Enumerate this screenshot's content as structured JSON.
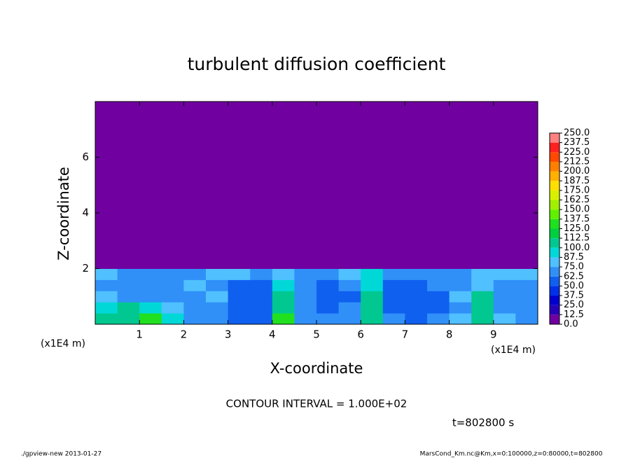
{
  "chart_data": {
    "type": "heatmap",
    "title": "turbulent diffusion coefficient",
    "xlabel": "X-coordinate",
    "ylabel": "Z-coordinate",
    "x_unit": "(x1E4 m)",
    "y_unit": "(x1E4 m)",
    "xlim": [
      0,
      10
    ],
    "ylim": [
      0,
      8
    ],
    "xticks": [
      1,
      2,
      3,
      4,
      5,
      6,
      7,
      8,
      9
    ],
    "yticks": [
      2,
      4,
      6
    ],
    "x": [
      0.25,
      0.75,
      1.25,
      1.75,
      2.25,
      2.75,
      3.25,
      3.75,
      4.25,
      4.75,
      5.25,
      5.75,
      6.25,
      6.75,
      7.25,
      7.75,
      8.25,
      8.75,
      9.25,
      9.75
    ],
    "y": [
      0.2,
      0.6,
      1.0,
      1.4,
      1.8,
      2.2,
      2.6,
      3.0,
      3.4,
      3.8,
      4.2,
      4.6,
      5.0,
      5.4,
      5.8,
      6.2,
      6.6,
      7.0,
      7.4,
      7.8
    ],
    "z": [
      [
        100,
        110,
        125,
        90,
        70,
        65,
        62,
        60,
        130,
        70,
        65,
        70,
        110,
        65,
        60,
        65,
        75,
        110,
        75,
        70
      ],
      [
        95,
        100,
        90,
        75,
        68,
        70,
        62,
        58,
        110,
        65,
        62,
        68,
        100,
        60,
        62,
        60,
        70,
        105,
        70,
        68
      ],
      [
        75,
        70,
        65,
        70,
        72,
        75,
        60,
        55,
        100,
        65,
        60,
        62,
        100,
        62,
        55,
        60,
        75,
        100,
        68,
        70
      ],
      [
        70,
        68,
        65,
        72,
        75,
        70,
        62,
        60,
        90,
        68,
        60,
        65,
        95,
        60,
        62,
        65,
        70,
        80,
        70,
        72
      ],
      [
        75,
        72,
        70,
        68,
        72,
        80,
        75,
        70,
        80,
        72,
        70,
        75,
        90,
        65,
        68,
        72,
        70,
        75,
        80,
        78
      ],
      [
        0,
        0,
        0,
        0,
        0,
        0,
        0,
        0,
        0,
        0,
        0,
        0,
        0,
        0,
        0,
        0,
        0,
        0,
        0,
        0
      ],
      [
        0,
        0,
        0,
        0,
        0,
        0,
        0,
        0,
        0,
        0,
        0,
        0,
        0,
        0,
        0,
        0,
        0,
        0,
        0,
        0
      ],
      [
        0,
        0,
        0,
        0,
        0,
        0,
        0,
        0,
        0,
        0,
        0,
        0,
        0,
        0,
        0,
        0,
        0,
        0,
        0,
        0
      ],
      [
        0,
        0,
        0,
        0,
        0,
        0,
        0,
        0,
        0,
        0,
        0,
        0,
        0,
        0,
        0,
        0,
        0,
        0,
        0,
        0
      ],
      [
        0,
        0,
        0,
        0,
        0,
        0,
        0,
        0,
        0,
        0,
        0,
        0,
        0,
        0,
        0,
        0,
        0,
        0,
        0,
        0
      ],
      [
        0,
        0,
        0,
        0,
        0,
        0,
        0,
        0,
        0,
        0,
        0,
        0,
        0,
        0,
        0,
        0,
        0,
        0,
        0,
        0
      ],
      [
        0,
        0,
        0,
        0,
        0,
        0,
        0,
        0,
        0,
        0,
        0,
        0,
        0,
        0,
        0,
        0,
        0,
        0,
        0,
        0
      ],
      [
        0,
        0,
        0,
        0,
        0,
        0,
        0,
        0,
        0,
        0,
        0,
        0,
        0,
        0,
        0,
        0,
        0,
        0,
        0,
        0
      ],
      [
        0,
        0,
        0,
        0,
        0,
        0,
        0,
        0,
        0,
        0,
        0,
        0,
        0,
        0,
        0,
        0,
        0,
        0,
        0,
        0
      ],
      [
        0,
        0,
        0,
        0,
        0,
        0,
        0,
        0,
        0,
        0,
        0,
        0,
        0,
        0,
        0,
        0,
        0,
        0,
        0,
        0
      ],
      [
        0,
        0,
        0,
        0,
        0,
        0,
        0,
        0,
        0,
        0,
        0,
        0,
        0,
        0,
        0,
        0,
        0,
        0,
        0,
        0
      ],
      [
        0,
        0,
        0,
        0,
        0,
        0,
        0,
        0,
        0,
        0,
        0,
        0,
        0,
        0,
        0,
        0,
        0,
        0,
        0,
        0
      ],
      [
        0,
        0,
        0,
        0,
        0,
        0,
        0,
        0,
        0,
        0,
        0,
        0,
        0,
        0,
        0,
        0,
        0,
        0,
        0,
        0
      ],
      [
        0,
        0,
        0,
        0,
        0,
        0,
        0,
        0,
        0,
        0,
        0,
        0,
        0,
        0,
        0,
        0,
        0,
        0,
        0,
        0
      ],
      [
        0,
        0,
        0,
        0,
        0,
        0,
        0,
        0,
        0,
        0,
        0,
        0,
        0,
        0,
        0,
        0,
        0,
        0,
        0,
        0
      ]
    ],
    "levels": [
      {
        "value": 0,
        "label": "0.0"
      },
      {
        "value": 12.5,
        "label": "12.5"
      },
      {
        "value": 25,
        "label": "25.0"
      },
      {
        "value": 37.5,
        "label": "37.5"
      },
      {
        "value": 50,
        "label": "50.0"
      },
      {
        "value": 62.5,
        "label": "62.5"
      },
      {
        "value": 75,
        "label": "75.0"
      },
      {
        "value": 87.5,
        "label": "87.5"
      },
      {
        "value": 100,
        "label": "100.0"
      },
      {
        "value": 112.5,
        "label": "112.5"
      },
      {
        "value": 125,
        "label": "125.0"
      },
      {
        "value": 137.5,
        "label": "137.5"
      },
      {
        "value": 150,
        "label": "150.0"
      },
      {
        "value": 162.5,
        "label": "162.5"
      },
      {
        "value": 175,
        "label": "175.0"
      },
      {
        "value": 187.5,
        "label": "187.5"
      },
      {
        "value": 200,
        "label": "200.0"
      },
      {
        "value": 212.5,
        "label": "212.5"
      },
      {
        "value": 225,
        "label": "225.0"
      },
      {
        "value": 237.5,
        "label": "237.5"
      },
      {
        "value": 250,
        "label": "250.0"
      }
    ],
    "colors": [
      "#7000a0",
      "#2800b8",
      "#0000d0",
      "#0030e8",
      "#1060f0",
      "#3090f8",
      "#50c0ff",
      "#00d8d8",
      "#00c890",
      "#00d040",
      "#20e020",
      "#60f000",
      "#a0f000",
      "#d8f000",
      "#ffe000",
      "#ffb000",
      "#ff8000",
      "#ff4800",
      "#ff2020",
      "#ff8080"
    ],
    "annotations": [
      "CONTOUR INTERVAL = 1.000E+02",
      "t=802800 s"
    ],
    "footer_left": "./gpview-new  2013-01-27",
    "footer_right": "MarsCond_Km.nc@Km,x=0:100000,z=0:80000,t=802800"
  }
}
